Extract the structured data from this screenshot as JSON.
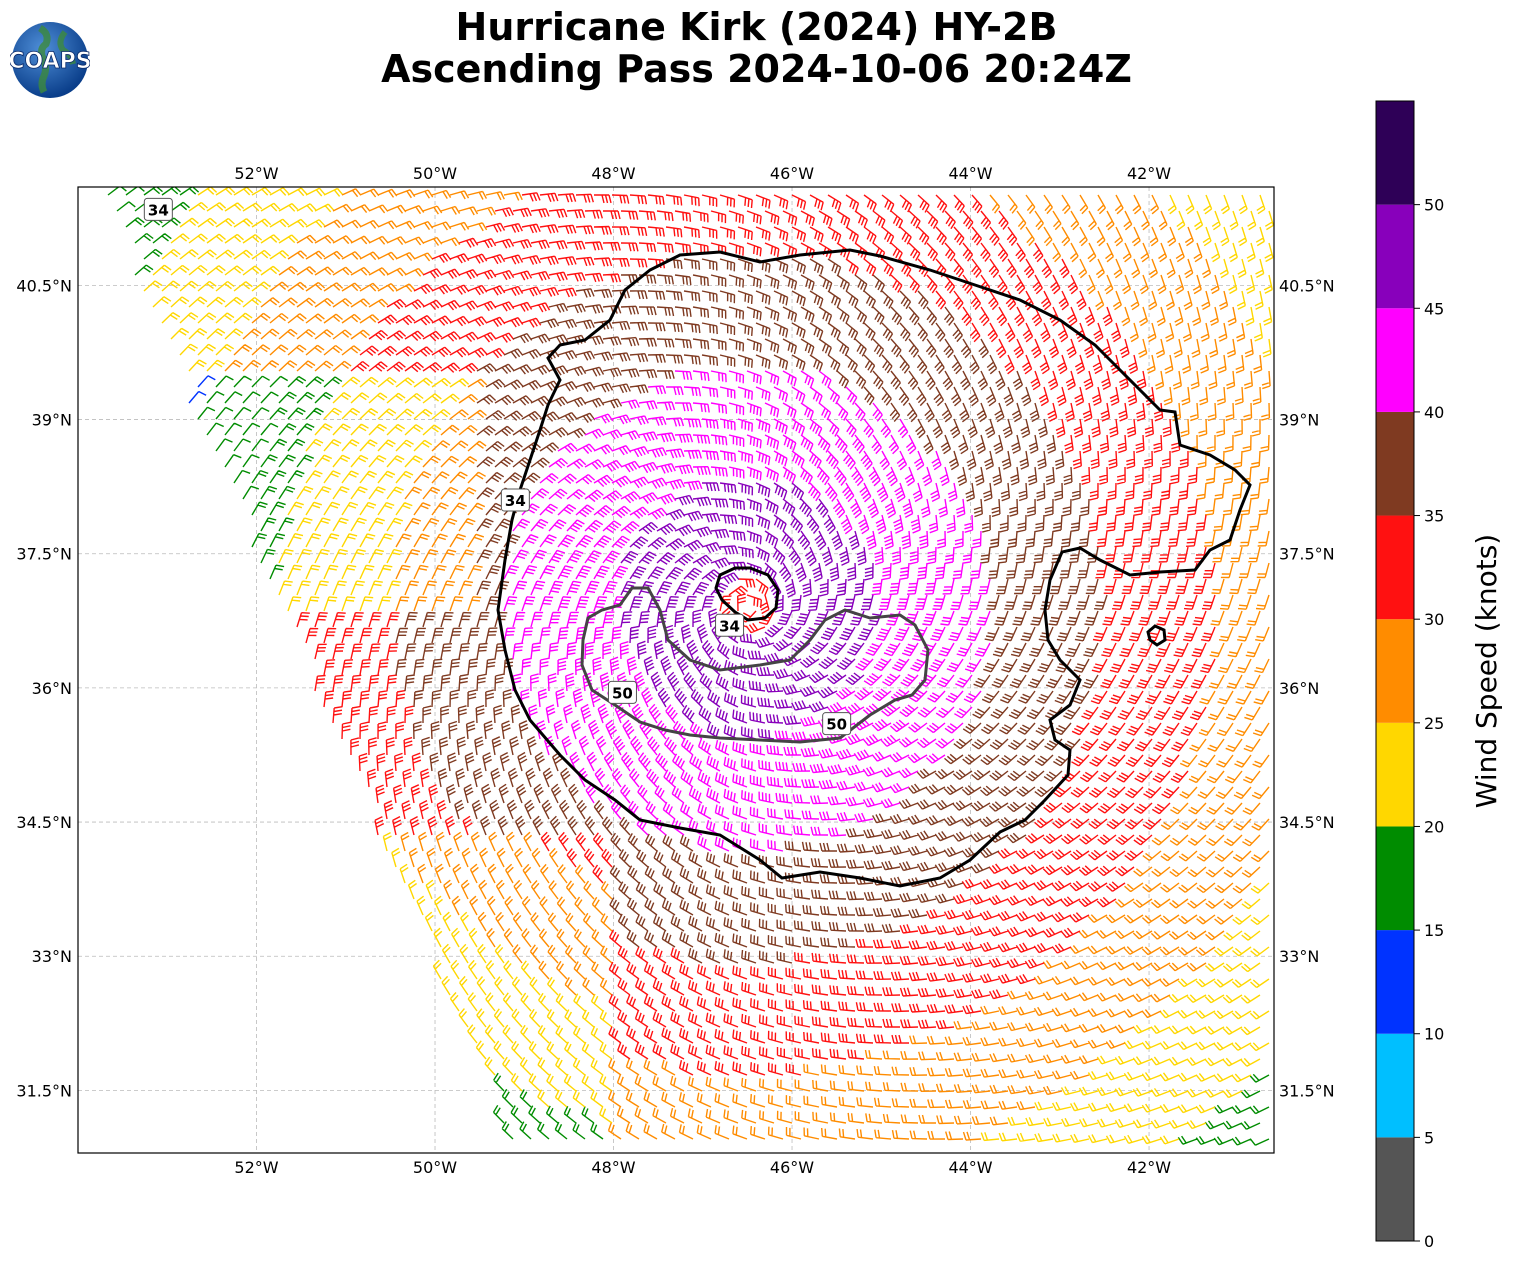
{
  "title": {
    "line1": "Hurricane Kirk (2024) HY-2B",
    "line2": "Ascending Pass 2024-10-06 20:24Z"
  },
  "logo": {
    "text": "COAPS"
  },
  "map": {
    "lon_ticks": [
      "52°W",
      "50°W",
      "48°W",
      "46°W",
      "44°W",
      "42°W"
    ],
    "lat_ticks": [
      "40.5°N",
      "39°N",
      "37.5°N",
      "36°N",
      "34.5°N",
      "33°N",
      "31.5°N"
    ],
    "lon_values": [
      -52,
      -50,
      -48,
      -46,
      -44,
      -42
    ],
    "lat_values": [
      40.5,
      39,
      37.5,
      36,
      34.5,
      33,
      31.5
    ],
    "lon_range": [
      -54,
      -40.6
    ],
    "lat_range": [
      30.8,
      41.6
    ],
    "gridlines": true,
    "storm_center": {
      "lon": -46.5,
      "lat": 36.9
    },
    "contour_labels": [
      {
        "text": "34",
        "lon": -53.1,
        "lat": 41.35
      },
      {
        "text": "34",
        "lon": -49.1,
        "lat": 38.1
      },
      {
        "text": "34",
        "lon": -46.7,
        "lat": 36.7
      },
      {
        "text": "50",
        "lon": -47.9,
        "lat": 35.95
      },
      {
        "text": "50",
        "lon": -45.5,
        "lat": 35.6
      }
    ]
  },
  "colorbar": {
    "label": "Wind Speed (knots)",
    "ticks": [
      "0",
      "5",
      "10",
      "15",
      "20",
      "25",
      "30",
      "35",
      "40",
      "45",
      "50"
    ],
    "colors": [
      "#555555",
      "#00bfff",
      "#0033ff",
      "#008c00",
      "#ffd700",
      "#ff8c00",
      "#ff1111",
      "#7f3a21",
      "#ff00ff",
      "#8800bb",
      "#2e0057"
    ]
  }
}
